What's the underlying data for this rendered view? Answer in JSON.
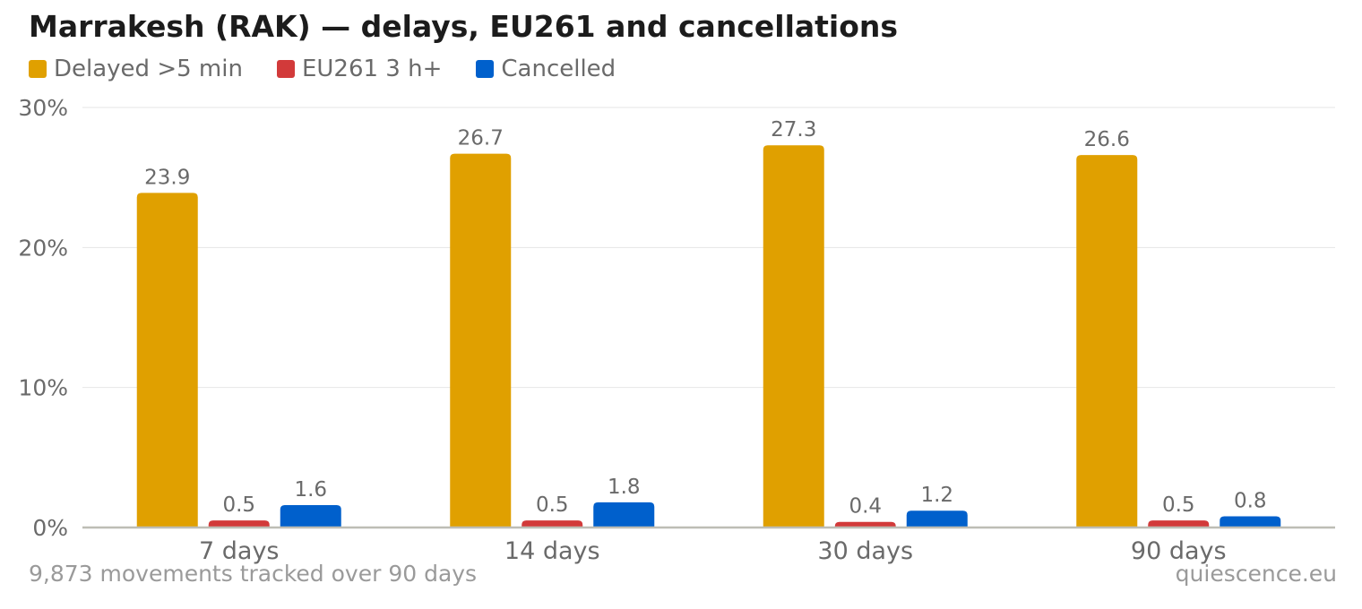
{
  "chart_data": {
    "type": "bar",
    "title": "Marrakesh (RAK) — delays, EU261 and cancellations",
    "categories": [
      "7 days",
      "14 days",
      "30 days",
      "90 days"
    ],
    "series": [
      {
        "name": "Delayed >5 min",
        "color": "#e0a000",
        "values": [
          23.9,
          26.7,
          27.3,
          26.6
        ]
      },
      {
        "name": "EU261 3 h+",
        "color": "#d23a3a",
        "values": [
          0.5,
          0.5,
          0.4,
          0.5
        ]
      },
      {
        "name": "Cancelled",
        "color": "#0060cc",
        "values": [
          1.6,
          1.8,
          1.2,
          0.8
        ]
      }
    ],
    "yticks": [
      0,
      10,
      20,
      30
    ],
    "ytick_labels": [
      "0%",
      "10%",
      "20%",
      "30%"
    ],
    "ylim": [
      0,
      30
    ],
    "grid": true,
    "legend_position": "top-left"
  },
  "footer": {
    "note": "9,873 movements tracked over 90 days",
    "source": "quiescence.eu"
  }
}
